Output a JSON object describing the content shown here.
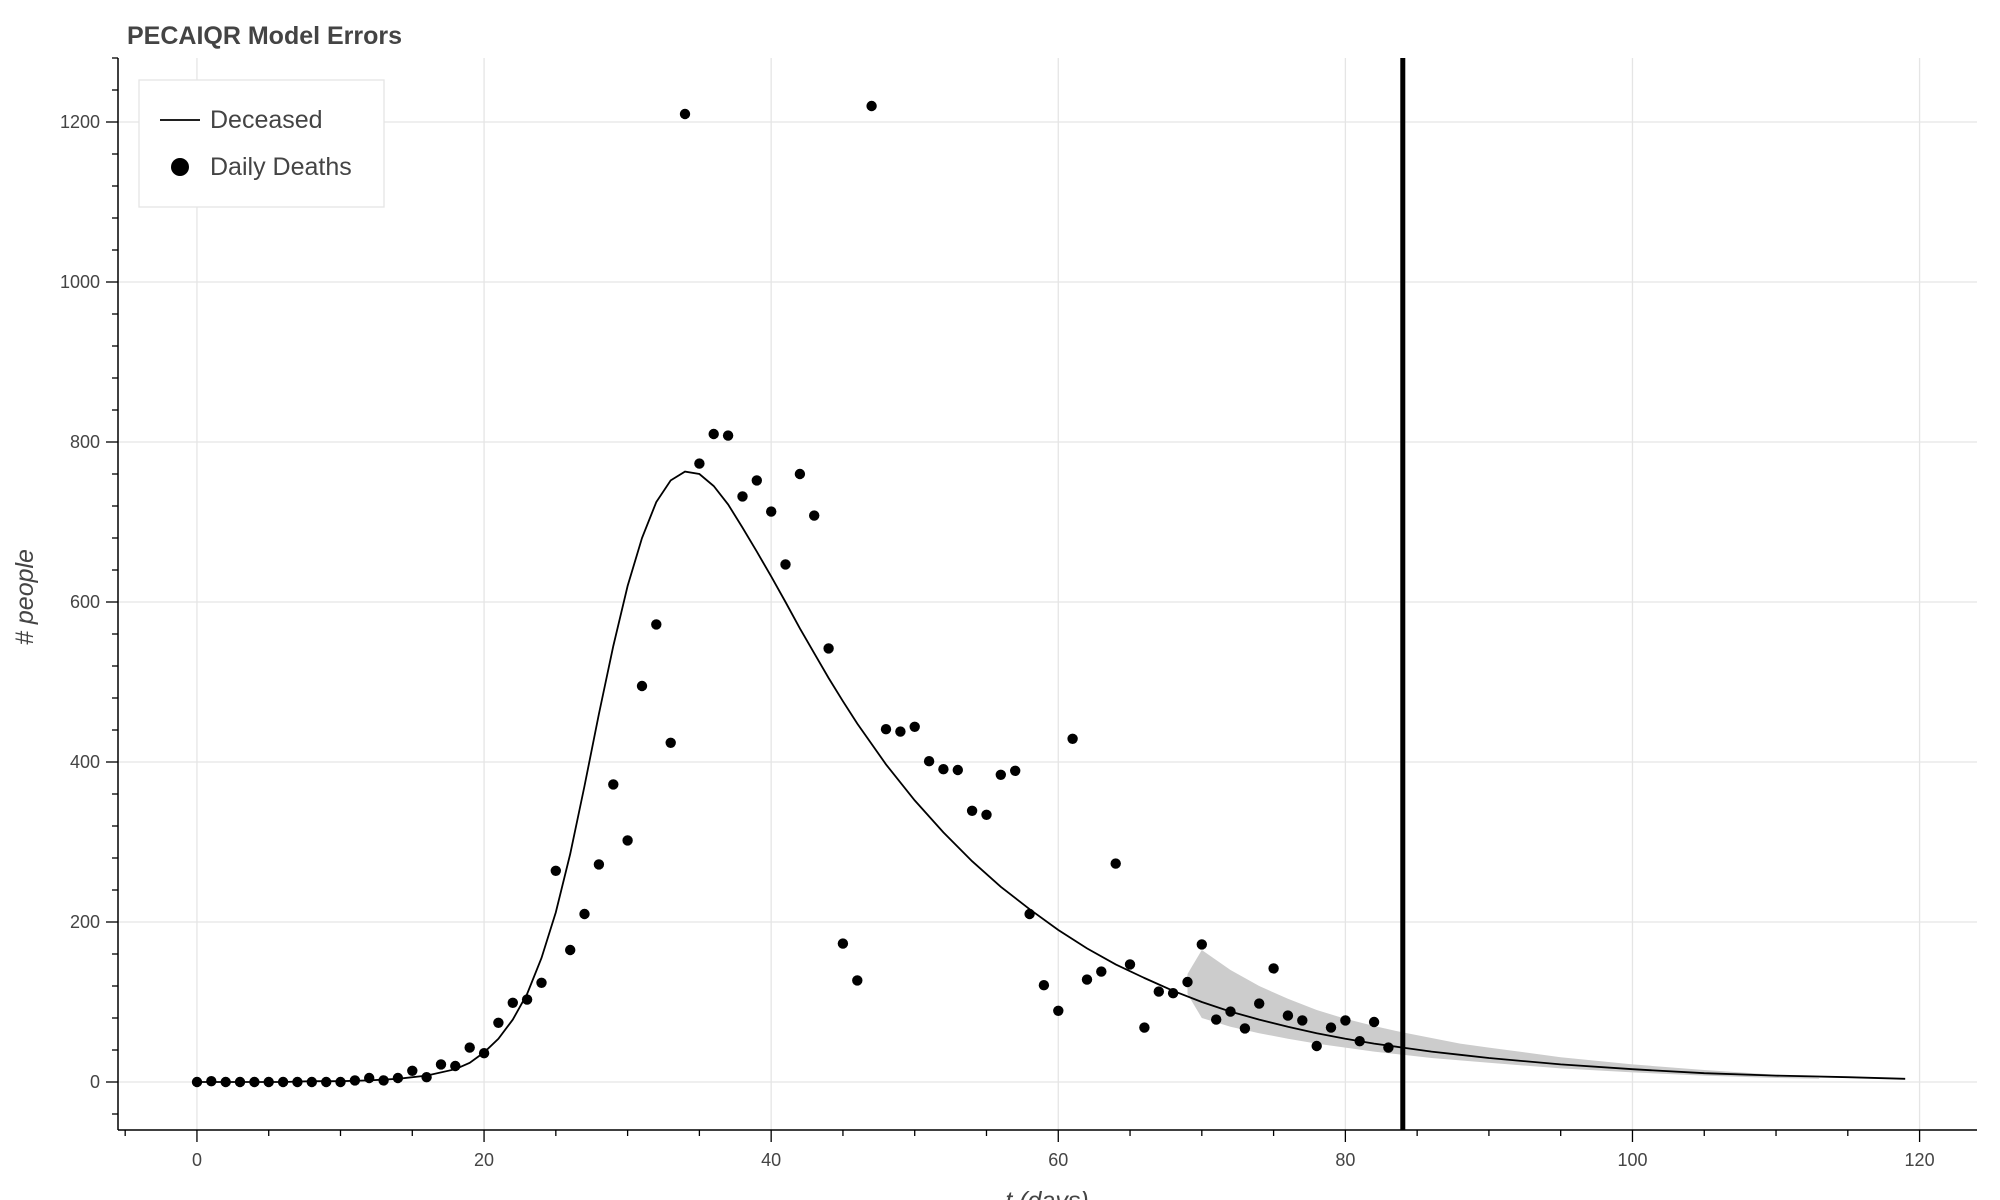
{
  "chart_data": {
    "type": "scatter",
    "title": "PECAIQR Model Errors",
    "xlabel": "t (days)",
    "ylabel": "# people",
    "xlim": [
      -5.5,
      124
    ],
    "ylim": [
      -60,
      1280
    ],
    "xticks": [
      0,
      20,
      40,
      60,
      80,
      100,
      120
    ],
    "yticks": [
      0,
      200,
      400,
      600,
      800,
      1000,
      1200
    ],
    "grid": true,
    "legend_position": "top-left",
    "vertical_marker_x": 84,
    "series": [
      {
        "name": "Deceased",
        "kind": "line",
        "color": "#000000",
        "x": [
          0,
          2,
          4,
          6,
          8,
          10,
          12,
          14,
          16,
          18,
          19,
          20,
          21,
          22,
          23,
          24,
          25,
          26,
          27,
          28,
          29,
          30,
          31,
          32,
          33,
          34,
          35,
          36,
          37,
          38,
          39,
          40,
          41,
          42,
          43,
          44,
          45,
          46,
          48,
          50,
          52,
          54,
          56,
          58,
          60,
          62,
          64,
          66,
          68,
          70,
          72,
          74,
          76,
          78,
          80,
          82,
          84,
          86,
          88,
          90,
          95,
          100,
          105,
          110,
          115,
          119
        ],
        "y": [
          0,
          0,
          0,
          0,
          1,
          1,
          2,
          4,
          8,
          16,
          24,
          37,
          54,
          78,
          110,
          155,
          212,
          285,
          370,
          460,
          545,
          620,
          680,
          725,
          752,
          763,
          760,
          745,
          722,
          693,
          663,
          632,
          600,
          567,
          536,
          505,
          476,
          448,
          397,
          352,
          312,
          276,
          244,
          216,
          190,
          167,
          147,
          130,
          114,
          100,
          88,
          78,
          69,
          61,
          54,
          48,
          43,
          38,
          34,
          30,
          22,
          16,
          11,
          8,
          6,
          4
        ]
      },
      {
        "name": "Daily Deaths",
        "kind": "scatter",
        "color": "#000000",
        "points": [
          [
            0,
            0
          ],
          [
            1,
            1
          ],
          [
            2,
            0
          ],
          [
            3,
            0
          ],
          [
            4,
            0
          ],
          [
            5,
            0
          ],
          [
            6,
            0
          ],
          [
            7,
            0
          ],
          [
            8,
            0
          ],
          [
            9,
            0
          ],
          [
            10,
            0
          ],
          [
            11,
            2
          ],
          [
            12,
            5
          ],
          [
            13,
            2
          ],
          [
            14,
            5
          ],
          [
            15,
            14
          ],
          [
            16,
            6
          ],
          [
            17,
            22
          ],
          [
            18,
            20
          ],
          [
            19,
            43
          ],
          [
            20,
            36
          ],
          [
            21,
            74
          ],
          [
            22,
            99
          ],
          [
            23,
            103
          ],
          [
            24,
            124
          ],
          [
            25,
            264
          ],
          [
            26,
            165
          ],
          [
            27,
            210
          ],
          [
            28,
            272
          ],
          [
            29,
            372
          ],
          [
            30,
            302
          ],
          [
            31,
            495
          ],
          [
            32,
            572
          ],
          [
            33,
            424
          ],
          [
            34,
            1210
          ],
          [
            35,
            773
          ],
          [
            36,
            810
          ],
          [
            37,
            808
          ],
          [
            38,
            732
          ],
          [
            39,
            752
          ],
          [
            40,
            713
          ],
          [
            41,
            647
          ],
          [
            42,
            760
          ],
          [
            43,
            708
          ],
          [
            44,
            542
          ],
          [
            45,
            173
          ],
          [
            46,
            127
          ],
          [
            47,
            1220
          ],
          [
            48,
            441
          ],
          [
            49,
            438
          ],
          [
            50,
            444
          ],
          [
            51,
            401
          ],
          [
            52,
            391
          ],
          [
            53,
            390
          ],
          [
            54,
            339
          ],
          [
            55,
            334
          ],
          [
            56,
            384
          ],
          [
            57,
            389
          ],
          [
            58,
            210
          ],
          [
            59,
            121
          ],
          [
            60,
            89
          ],
          [
            61,
            429
          ],
          [
            62,
            128
          ],
          [
            63,
            138
          ],
          [
            64,
            273
          ],
          [
            65,
            147
          ],
          [
            66,
            68
          ],
          [
            67,
            113
          ],
          [
            68,
            111
          ],
          [
            69,
            125
          ],
          [
            70,
            172
          ],
          [
            71,
            78
          ],
          [
            72,
            88
          ],
          [
            73,
            67
          ],
          [
            74,
            98
          ],
          [
            75,
            142
          ],
          [
            76,
            83
          ],
          [
            77,
            77
          ],
          [
            78,
            45
          ],
          [
            79,
            68
          ],
          [
            80,
            77
          ],
          [
            81,
            51
          ],
          [
            82,
            75
          ],
          [
            83,
            43
          ]
        ]
      },
      {
        "name": "",
        "kind": "band",
        "color": "#cccccc",
        "x": [
          69,
          70,
          72,
          74,
          76,
          78,
          80,
          82,
          84,
          86,
          88,
          90,
          95,
          100,
          105,
          110,
          113
        ],
        "lower": [
          110,
          80,
          69,
          61,
          54,
          48,
          43,
          38,
          34,
          30,
          27,
          24,
          17,
          12,
          8,
          5,
          4
        ],
        "upper": [
          135,
          165,
          140,
          120,
          104,
          90,
          79,
          70,
          62,
          55,
          48,
          43,
          31,
          22,
          15,
          9,
          5
        ]
      }
    ]
  }
}
